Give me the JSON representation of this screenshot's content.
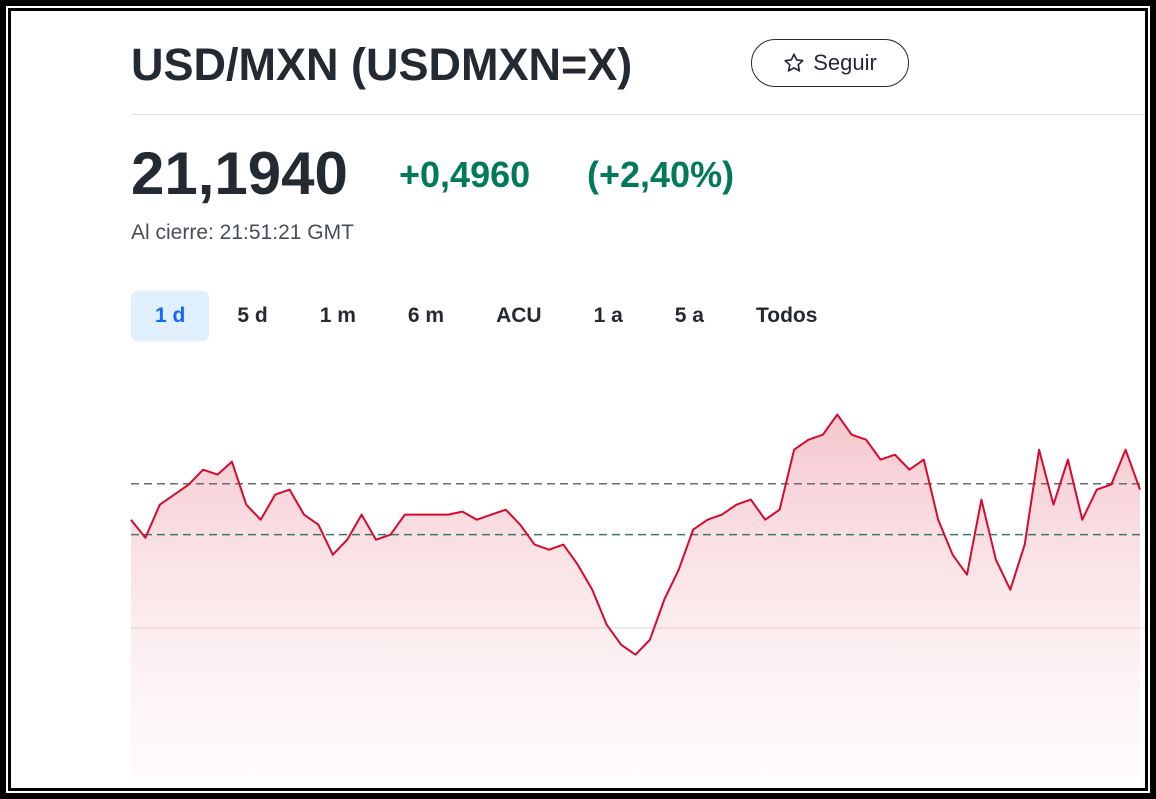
{
  "header": {
    "title": "USD/MXN (USDMXN=X)",
    "follow_button": "Seguir"
  },
  "quote": {
    "price": "21,1940",
    "change": "+0,4960",
    "change_percent": "(+2,40%)",
    "status": "Al cierre: 21:51:21 GMT"
  },
  "tabs": [
    "1 d",
    "5 d",
    "1 m",
    "6 m",
    "ACU",
    "1 a",
    "5 a",
    "Todos"
  ],
  "chart_data": {
    "type": "line",
    "color": "#d60a2e",
    "values": [
      20.844,
      20.669,
      20.99,
      21.087,
      21.185,
      21.33,
      21.282,
      21.408,
      20.99,
      20.844,
      21.087,
      21.136,
      20.893,
      20.795,
      20.503,
      20.649,
      20.893,
      20.649,
      20.698,
      20.893,
      20.893,
      20.893,
      20.893,
      20.922,
      20.844,
      20.893,
      20.941,
      20.795,
      20.601,
      20.552,
      20.601,
      20.406,
      20.163,
      19.822,
      19.628,
      19.53,
      19.676,
      20.066,
      20.357,
      20.747,
      20.844,
      20.893,
      20.99,
      21.039,
      20.844,
      20.941,
      21.525,
      21.622,
      21.671,
      21.866,
      21.671,
      21.622,
      21.428,
      21.476,
      21.33,
      21.428,
      20.844,
      20.503,
      20.309,
      21.039,
      20.455,
      20.163,
      20.601,
      21.525,
      20.99,
      21.428,
      20.844,
      21.136,
      21.185,
      21.525,
      21.136
    ],
    "ylim": [
      18.36,
      22.3
    ],
    "reference_lines": [
      21.194,
      20.698
    ]
  }
}
